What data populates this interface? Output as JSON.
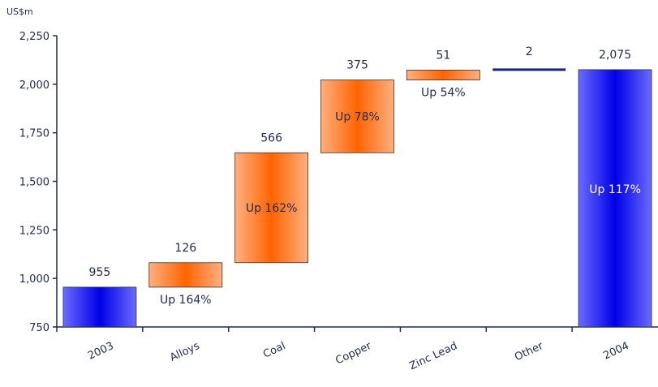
{
  "chart_data": {
    "type": "bar",
    "subtype": "waterfall",
    "unit_label": "US$m",
    "categories": [
      "2003",
      "Alloys",
      "Coal",
      "Copper",
      "Zinc Lead",
      "Other",
      "2004"
    ],
    "bars": [
      {
        "category": "2003",
        "kind": "total",
        "base": 750,
        "value": 955,
        "label": "955",
        "inner_label": ""
      },
      {
        "category": "Alloys",
        "kind": "delta",
        "start": 955,
        "delta": 126,
        "label": "126",
        "inner_label": "Up 164%"
      },
      {
        "category": "Coal",
        "kind": "delta",
        "start": 1081,
        "delta": 566,
        "label": "566",
        "inner_label": "Up 162%"
      },
      {
        "category": "Copper",
        "kind": "delta",
        "start": 1647,
        "delta": 375,
        "label": "375",
        "inner_label": "Up 78%"
      },
      {
        "category": "Zinc Lead",
        "kind": "delta",
        "start": 2022,
        "delta": 51,
        "label": "51",
        "inner_label": "Up 54%"
      },
      {
        "category": "Other",
        "kind": "delta",
        "start": 2073,
        "delta": 2,
        "label": "2",
        "inner_label": ""
      },
      {
        "category": "2004",
        "kind": "total",
        "base": 750,
        "value": 2075,
        "label": "2,075",
        "inner_label": "Up 117%"
      }
    ],
    "ylim": [
      750,
      2250
    ],
    "yticks": [
      750,
      1000,
      1250,
      1500,
      1750,
      2000,
      2250
    ],
    "ytick_labels": [
      "750",
      "1,000",
      "1,250",
      "1,500",
      "1,750",
      "2,000",
      "2,250"
    ],
    "colors": {
      "total": "#0000e0",
      "total_edge": "#5a5aff",
      "delta": "#ff6a00",
      "delta_edge": "#ffb27a",
      "axis": "#1f2a4d",
      "text": "#1f2a4d"
    },
    "grid": false,
    "legend": "none"
  }
}
